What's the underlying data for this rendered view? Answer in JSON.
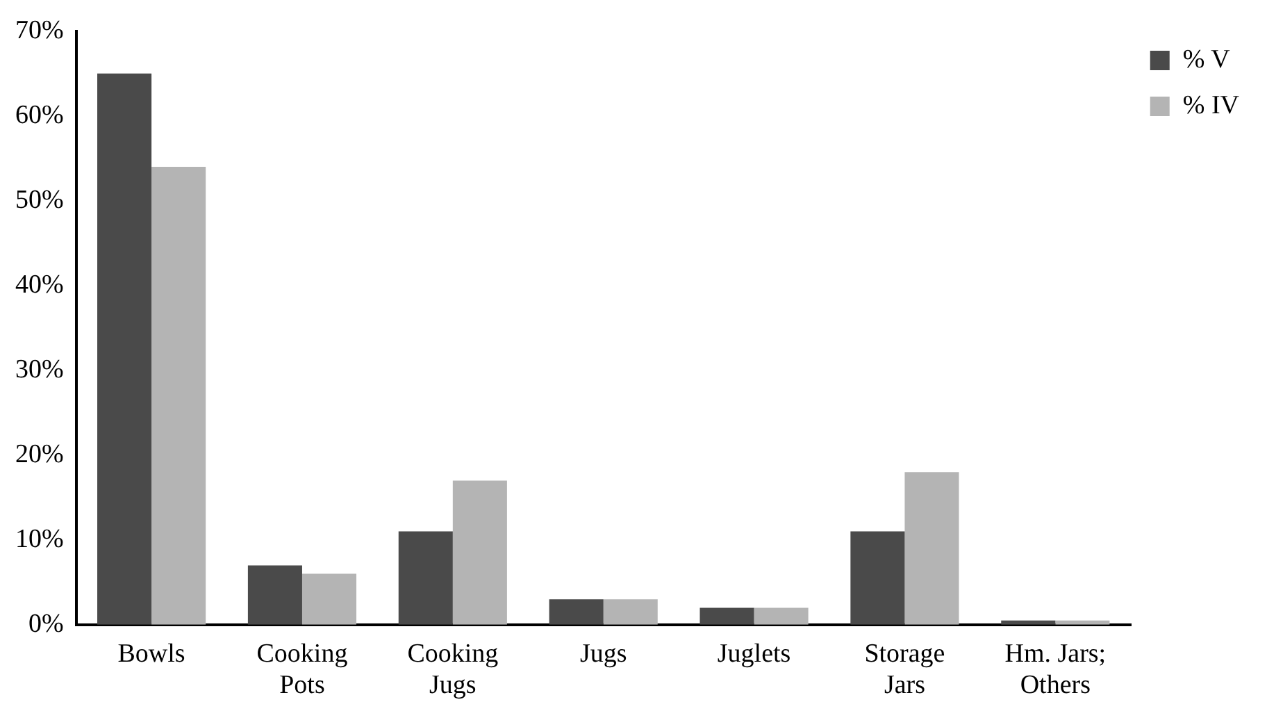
{
  "chart_data": {
    "type": "bar",
    "categories": [
      "Bowls",
      "Cooking Pots",
      "Cooking Jugs",
      "Jugs",
      "Juglets",
      "Storage Jars",
      "Hm. Jars; Others"
    ],
    "series": [
      {
        "name": "% V",
        "color": "#4a4a4a",
        "values": [
          65,
          7,
          11,
          3,
          2,
          11,
          0.5
        ]
      },
      {
        "name": "% IV",
        "color": "#b4b4b4",
        "values": [
          54,
          6,
          17,
          3,
          2,
          18,
          0.5
        ]
      }
    ],
    "ylim": [
      0,
      70
    ],
    "yticks": [
      {
        "value": 0,
        "label": "0%"
      },
      {
        "value": 10,
        "label": "10%"
      },
      {
        "value": 20,
        "label": "20%"
      },
      {
        "value": 30,
        "label": "30%"
      },
      {
        "value": 40,
        "label": "40%"
      },
      {
        "value": 50,
        "label": "50%"
      },
      {
        "value": 60,
        "label": "60%"
      },
      {
        "value": 70,
        "label": "70%"
      }
    ],
    "grid": false,
    "legend": "top right"
  }
}
